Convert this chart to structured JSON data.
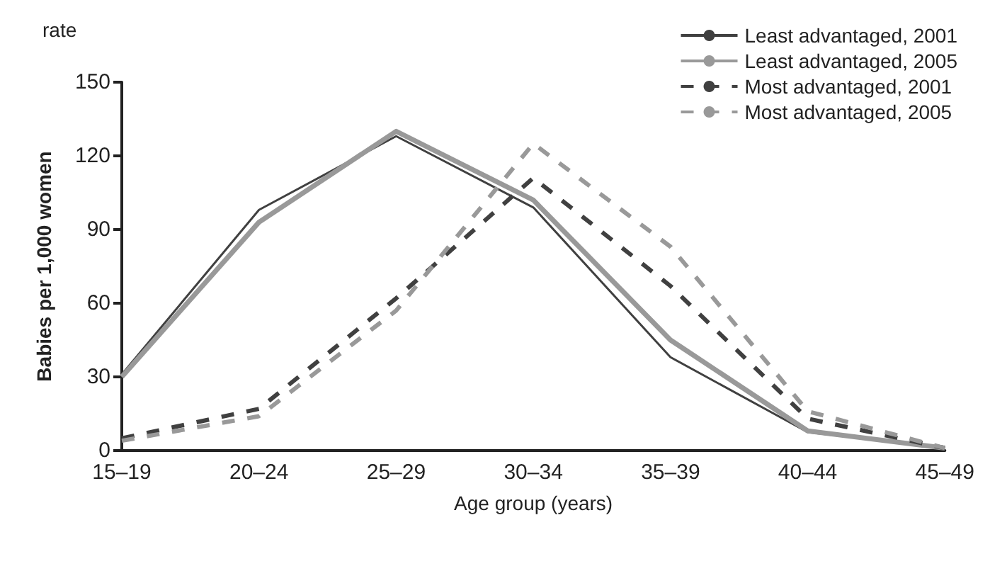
{
  "chart_data": {
    "type": "line",
    "xlabel": "Age group (years)",
    "ylabel": "Babies per 1,000 women",
    "annotations": [
      "rate"
    ],
    "categories": [
      "15–19",
      "20–24",
      "25–29",
      "30–34",
      "35–39",
      "40–44",
      "45–49"
    ],
    "ylim": [
      0,
      150
    ],
    "yticks": [
      0,
      30,
      60,
      90,
      120,
      150
    ],
    "grid": false,
    "legend": "top right",
    "marker": "none",
    "series": [
      {
        "name": "Least advantaged, 2001",
        "color": "#404040",
        "line_style": "solid",
        "values": [
          31,
          98,
          128,
          99,
          38,
          7.5,
          1
        ]
      },
      {
        "name": "Least advantaged, 2005",
        "color": "#999999",
        "line_style": "solid",
        "values": [
          30,
          93,
          130,
          102,
          45,
          8,
          1
        ]
      },
      {
        "name": "Most advantaged, 2001",
        "color": "#404040",
        "line_style": "dashed",
        "values": [
          5,
          17,
          62,
          111,
          67,
          13,
          1
        ]
      },
      {
        "name": "Most advantaged, 2005",
        "color": "#999999",
        "line_style": "dashed",
        "values": [
          4,
          14,
          57,
          125,
          83,
          16,
          1
        ]
      }
    ]
  }
}
